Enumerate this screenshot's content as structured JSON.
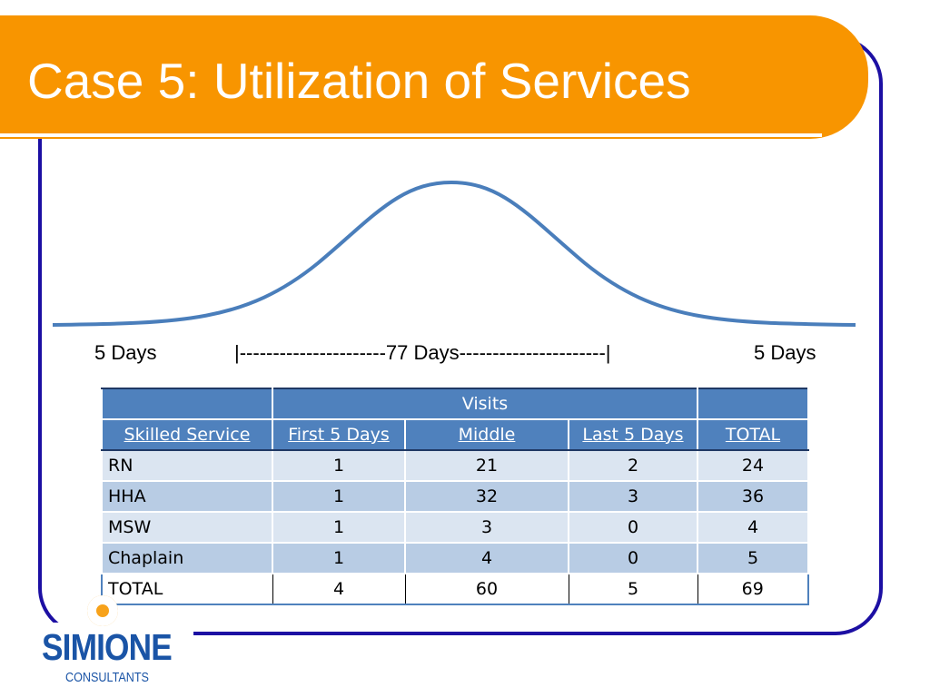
{
  "slide": {
    "title": "Case 5: Utilization of Services"
  },
  "timeline": {
    "start_label": "5 Days",
    "middle_label": "|----------------------77 Days----------------------|",
    "end_label": "5 Days"
  },
  "table": {
    "group_header": "Visits",
    "columns": [
      "Skilled Service",
      "First 5 Days",
      "Middle",
      "Last 5 Days",
      "TOTAL"
    ],
    "rows": [
      [
        "RN",
        "1",
        "21",
        "2",
        "24"
      ],
      [
        "HHA",
        "1",
        "32",
        "3",
        "36"
      ],
      [
        "MSW",
        "1",
        "3",
        "0",
        "4"
      ],
      [
        "Chaplain",
        "1",
        "4",
        "0",
        "5"
      ]
    ],
    "total_row": [
      "TOTAL",
      "4",
      "60",
      "5",
      "69"
    ]
  },
  "logo": {
    "name": "SIMIONE",
    "sub": "CONSULTANTS"
  },
  "colors": {
    "title_bar": "#f89500",
    "frame": "#1c0fa3",
    "curve": "#4a7ebb",
    "table_header": "#4f81bd",
    "row_light": "#dbe5f1",
    "row_dark": "#b8cce4",
    "logo": "#1a54a6"
  },
  "icons": {
    "logo_mark": "simione-logo-icon"
  }
}
